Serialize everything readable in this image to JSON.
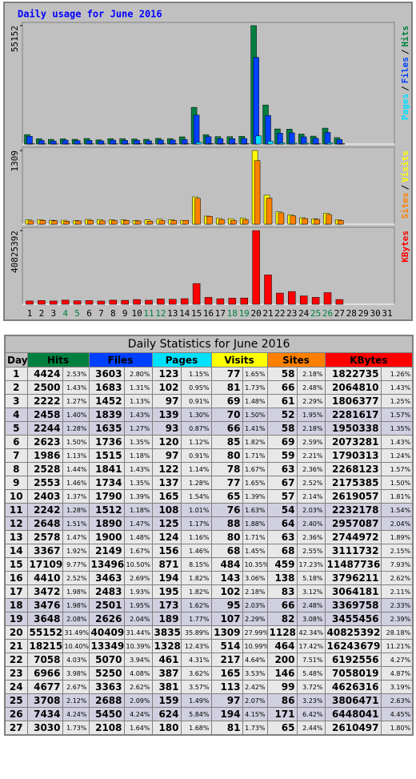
{
  "chart_data": [
    {
      "type": "bar",
      "title": "Daily usage for June 2016",
      "legend_separator": "/",
      "categories": [
        "1",
        "2",
        "3",
        "4",
        "5",
        "6",
        "7",
        "8",
        "9",
        "10",
        "11",
        "12",
        "13",
        "14",
        "15",
        "16",
        "17",
        "18",
        "19",
        "20",
        "21",
        "22",
        "23",
        "24",
        "25",
        "26",
        "27",
        "28",
        "29",
        "30",
        "31"
      ],
      "category_label_colors": [
        "#000000",
        "#000000",
        "#000000",
        "#008040",
        "#008040",
        "#000000",
        "#000000",
        "#000000",
        "#000000",
        "#000000",
        "#008040",
        "#008040",
        "#000000",
        "#000000",
        "#000000",
        "#000000",
        "#000000",
        "#008040",
        "#008040",
        "#000000",
        "#000000",
        "#000000",
        "#000000",
        "#000000",
        "#008040",
        "#008040",
        "#000000",
        "#000000",
        "#000000",
        "#000000",
        "#000000"
      ],
      "ylim": [
        0,
        55152
      ],
      "yticks": [
        55152
      ],
      "series": [
        {
          "name": "Hits",
          "color": "#008040",
          "values": [
            4424,
            2500,
            2222,
            2458,
            2244,
            2623,
            1986,
            2528,
            2553,
            2403,
            2242,
            2648,
            2578,
            3367,
            17109,
            4410,
            3472,
            3476,
            3648,
            55152,
            18215,
            7058,
            6966,
            4677,
            3708,
            7434,
            3030,
            null,
            null,
            null,
            null
          ]
        },
        {
          "name": "Files",
          "color": "#0040ff",
          "values": [
            3603,
            1683,
            1452,
            1839,
            1635,
            1736,
            1515,
            1841,
            1734,
            1790,
            1512,
            1890,
            1900,
            2149,
            13496,
            3463,
            2483,
            2501,
            2626,
            40409,
            13349,
            5070,
            5250,
            3363,
            2688,
            5450,
            2108,
            null,
            null,
            null,
            null
          ]
        },
        {
          "name": "Pages",
          "color": "#00e0ff",
          "values": [
            123,
            102,
            97,
            139,
            93,
            120,
            97,
            122,
            137,
            165,
            108,
            125,
            124,
            156,
            871,
            194,
            195,
            173,
            189,
            3835,
            1328,
            461,
            387,
            381,
            159,
            624,
            180,
            null,
            null,
            null,
            null
          ]
        }
      ]
    },
    {
      "type": "bar",
      "legend_separator": "/",
      "ylim": [
        0,
        1309
      ],
      "yticks": [
        1309
      ],
      "series": [
        {
          "name": "Visits",
          "color": "#ffff00",
          "values": [
            77,
            81,
            69,
            70,
            66,
            85,
            80,
            78,
            77,
            65,
            76,
            88,
            80,
            68,
            484,
            143,
            102,
            95,
            107,
            1309,
            514,
            217,
            165,
            113,
            97,
            194,
            81,
            null,
            null,
            null,
            null
          ]
        },
        {
          "name": "Sites",
          "color": "#ff8000",
          "values": [
            58,
            66,
            61,
            52,
            58,
            69,
            59,
            63,
            67,
            57,
            54,
            64,
            63,
            68,
            459,
            138,
            83,
            66,
            82,
            1128,
            464,
            200,
            146,
            99,
            86,
            171,
            65,
            null,
            null,
            null,
            null
          ]
        }
      ]
    },
    {
      "type": "bar",
      "ylim": [
        0,
        40825392
      ],
      "yticks": [
        40825392
      ],
      "series": [
        {
          "name": "KBytes",
          "color": "#ff0000",
          "values": [
            1822735,
            2064810,
            1806377,
            2281617,
            1950338,
            2073281,
            1790313,
            2268123,
            2175385,
            2619057,
            2232178,
            2957087,
            2744972,
            3111732,
            11487736,
            3796211,
            3064181,
            3369758,
            3455456,
            40825392,
            16243679,
            6192556,
            7058019,
            4626316,
            3806471,
            6448041,
            2610497,
            null,
            null,
            null,
            null
          ]
        }
      ]
    }
  ],
  "table": {
    "title": "Daily Statistics for June 2016",
    "columns": [
      "Day",
      "Hits",
      "Files",
      "Pages",
      "Visits",
      "Sites",
      "KBytes"
    ],
    "column_colors": [
      "#c0c0c0",
      "#008040",
      "#0040ff",
      "#00e0ff",
      "#ffff00",
      "#ff8000",
      "#ff0000"
    ],
    "row_colors": [
      "#e8e8e8",
      "#e8e8e8",
      "#e8e8e8",
      "#d0d0e0",
      "#d0d0e0",
      "#e8e8e8",
      "#e8e8e8",
      "#e8e8e8",
      "#e8e8e8",
      "#e8e8e8",
      "#d0d0e0",
      "#d0d0e0",
      "#e8e8e8",
      "#e8e8e8",
      "#e8e8e8",
      "#e8e8e8",
      "#e8e8e8",
      "#d0d0e0",
      "#d0d0e0",
      "#e8e8e8",
      "#e8e8e8",
      "#e8e8e8",
      "#e8e8e8",
      "#e8e8e8",
      "#d0d0e0",
      "#d0d0e0",
      "#e8e8e8"
    ],
    "rows": [
      [
        1,
        4424,
        "2.53%",
        3603,
        "2.80%",
        123,
        "1.15%",
        77,
        "1.65%",
        58,
        "2.18%",
        1822735,
        "1.26%"
      ],
      [
        2,
        2500,
        "1.43%",
        1683,
        "1.31%",
        102,
        "0.95%",
        81,
        "1.73%",
        66,
        "2.48%",
        2064810,
        "1.43%"
      ],
      [
        3,
        2222,
        "1.27%",
        1452,
        "1.13%",
        97,
        "0.91%",
        69,
        "1.48%",
        61,
        "2.29%",
        1806377,
        "1.25%"
      ],
      [
        4,
        2458,
        "1.40%",
        1839,
        "1.43%",
        139,
        "1.30%",
        70,
        "1.50%",
        52,
        "1.95%",
        2281617,
        "1.57%"
      ],
      [
        5,
        2244,
        "1.28%",
        1635,
        "1.27%",
        93,
        "0.87%",
        66,
        "1.41%",
        58,
        "2.18%",
        1950338,
        "1.35%"
      ],
      [
        6,
        2623,
        "1.50%",
        1736,
        "1.35%",
        120,
        "1.12%",
        85,
        "1.82%",
        69,
        "2.59%",
        2073281,
        "1.43%"
      ],
      [
        7,
        1986,
        "1.13%",
        1515,
        "1.18%",
        97,
        "0.91%",
        80,
        "1.71%",
        59,
        "2.21%",
        1790313,
        "1.24%"
      ],
      [
        8,
        2528,
        "1.44%",
        1841,
        "1.43%",
        122,
        "1.14%",
        78,
        "1.67%",
        63,
        "2.36%",
        2268123,
        "1.57%"
      ],
      [
        9,
        2553,
        "1.46%",
        1734,
        "1.35%",
        137,
        "1.28%",
        77,
        "1.65%",
        67,
        "2.52%",
        2175385,
        "1.50%"
      ],
      [
        10,
        2403,
        "1.37%",
        1790,
        "1.39%",
        165,
        "1.54%",
        65,
        "1.39%",
        57,
        "2.14%",
        2619057,
        "1.81%"
      ],
      [
        11,
        2242,
        "1.28%",
        1512,
        "1.18%",
        108,
        "1.01%",
        76,
        "1.63%",
        54,
        "2.03%",
        2232178,
        "1.54%"
      ],
      [
        12,
        2648,
        "1.51%",
        1890,
        "1.47%",
        125,
        "1.17%",
        88,
        "1.88%",
        64,
        "2.40%",
        2957087,
        "2.04%"
      ],
      [
        13,
        2578,
        "1.47%",
        1900,
        "1.48%",
        124,
        "1.16%",
        80,
        "1.71%",
        63,
        "2.36%",
        2744972,
        "1.89%"
      ],
      [
        14,
        3367,
        "1.92%",
        2149,
        "1.67%",
        156,
        "1.46%",
        68,
        "1.45%",
        68,
        "2.55%",
        3111732,
        "2.15%"
      ],
      [
        15,
        17109,
        "9.77%",
        13496,
        "10.50%",
        871,
        "8.15%",
        484,
        "10.35%",
        459,
        "17.23%",
        11487736,
        "7.93%"
      ],
      [
        16,
        4410,
        "2.52%",
        3463,
        "2.69%",
        194,
        "1.82%",
        143,
        "3.06%",
        138,
        "5.18%",
        3796211,
        "2.62%"
      ],
      [
        17,
        3472,
        "1.98%",
        2483,
        "1.93%",
        195,
        "1.82%",
        102,
        "2.18%",
        83,
        "3.12%",
        3064181,
        "2.11%"
      ],
      [
        18,
        3476,
        "1.98%",
        2501,
        "1.95%",
        173,
        "1.62%",
        95,
        "2.03%",
        66,
        "2.48%",
        3369758,
        "2.33%"
      ],
      [
        19,
        3648,
        "2.08%",
        2626,
        "2.04%",
        189,
        "1.77%",
        107,
        "2.29%",
        82,
        "3.08%",
        3455456,
        "2.39%"
      ],
      [
        20,
        55152,
        "31.49%",
        40409,
        "31.44%",
        3835,
        "35.89%",
        1309,
        "27.99%",
        1128,
        "42.34%",
        40825392,
        "28.18%"
      ],
      [
        21,
        18215,
        "10.40%",
        13349,
        "10.39%",
        1328,
        "12.43%",
        514,
        "10.99%",
        464,
        "17.42%",
        16243679,
        "11.21%"
      ],
      [
        22,
        7058,
        "4.03%",
        5070,
        "3.94%",
        461,
        "4.31%",
        217,
        "4.64%",
        200,
        "7.51%",
        6192556,
        "4.27%"
      ],
      [
        23,
        6966,
        "3.98%",
        5250,
        "4.08%",
        387,
        "3.62%",
        165,
        "3.53%",
        146,
        "5.48%",
        7058019,
        "4.87%"
      ],
      [
        24,
        4677,
        "2.67%",
        3363,
        "2.62%",
        381,
        "3.57%",
        113,
        "2.42%",
        99,
        "3.72%",
        4626316,
        "3.19%"
      ],
      [
        25,
        3708,
        "2.12%",
        2688,
        "2.09%",
        159,
        "1.49%",
        97,
        "2.07%",
        86,
        "3.23%",
        3806471,
        "2.63%"
      ],
      [
        26,
        7434,
        "4.24%",
        5450,
        "4.24%",
        624,
        "5.84%",
        194,
        "4.15%",
        171,
        "6.42%",
        6448041,
        "4.45%"
      ],
      [
        27,
        3030,
        "1.73%",
        2108,
        "1.64%",
        180,
        "1.68%",
        81,
        "1.73%",
        65,
        "2.44%",
        2610497,
        "1.80%"
      ]
    ]
  }
}
